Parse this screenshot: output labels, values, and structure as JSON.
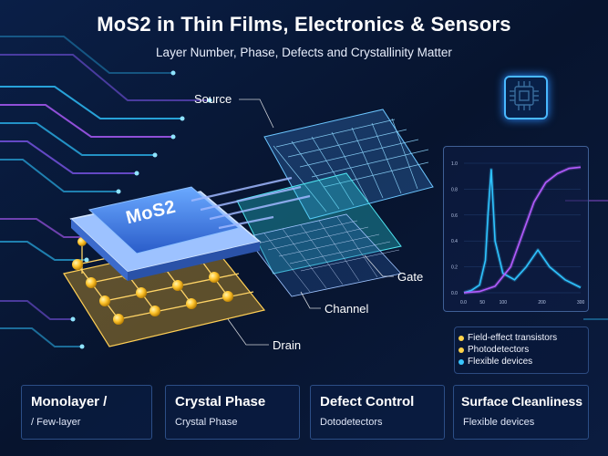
{
  "header": {
    "title": "MoS2 in Thin Films, Electronics & Sensors",
    "subtitle": "Layer Number, Phase, Defects and Crystallinity Matter"
  },
  "device": {
    "chip_label": "MoS2",
    "labels": {
      "source": "Source",
      "gate": "Gate",
      "channel": "Channel",
      "drain": "Drain"
    }
  },
  "chart_data": {
    "type": "line",
    "title": "",
    "xlabel": "",
    "ylabel": "",
    "x_ticks": [
      "0.0",
      "50",
      "100",
      "200",
      "300"
    ],
    "y_ticks": [
      "1.0",
      "0.8",
      "0.6",
      "0.4",
      "0.2",
      "0.0"
    ],
    "series": [
      {
        "color": "#2fc4ff",
        "x": [
          0,
          20,
          40,
          55,
          62,
          70,
          80,
          100,
          130,
          160,
          190,
          220,
          260,
          300
        ],
        "y": [
          0.0,
          0.02,
          0.06,
          0.25,
          0.62,
          0.95,
          0.4,
          0.15,
          0.1,
          0.2,
          0.33,
          0.2,
          0.1,
          0.04
        ]
      },
      {
        "color": "#b35cff",
        "x": [
          0,
          40,
          80,
          120,
          150,
          180,
          210,
          240,
          270,
          300
        ],
        "y": [
          0.0,
          0.01,
          0.05,
          0.2,
          0.45,
          0.7,
          0.85,
          0.92,
          0.96,
          0.97
        ]
      }
    ]
  },
  "legend": {
    "items": [
      {
        "label": "Field-effect transistors",
        "color": "#ffd34a"
      },
      {
        "label": "Photodetectors",
        "color": "#ffd34a"
      },
      {
        "label": "Flexible devices",
        "color": "#39c6ff"
      }
    ]
  },
  "cards": [
    {
      "title": "Monolayer /",
      "subtitle": "/ Few-layer"
    },
    {
      "title": "Crystal Phase",
      "subtitle": "Crystal Phase"
    },
    {
      "title": "Defect Control",
      "subtitle": "Dotodetectors"
    },
    {
      "title": "Surface Cleanliness",
      "subtitle": "Flexible devices"
    }
  ],
  "colors": {
    "background": "#07142e",
    "accent_cyan": "#2fc4ff",
    "accent_purple": "#b35cff",
    "atom_gold": "#ffc52e"
  }
}
